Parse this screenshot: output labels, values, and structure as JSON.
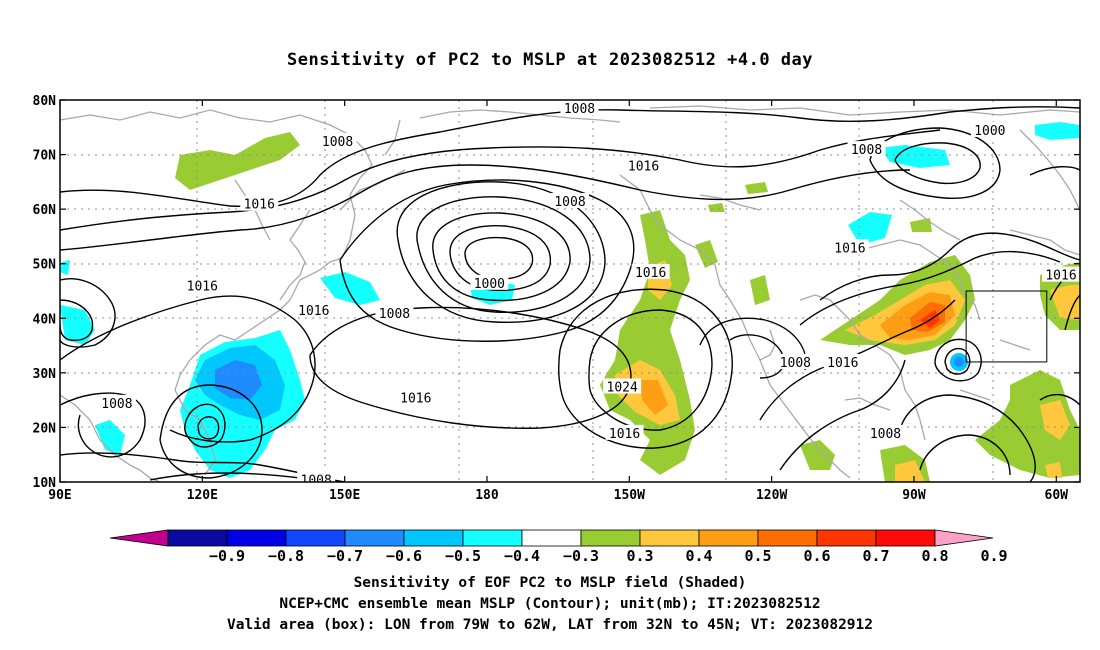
{
  "title": "Sensitivity of PC2 to MSLP at 2023082512 +4.0 day",
  "map": {
    "lon_range": [
      90,
      305
    ],
    "lat_range": [
      10,
      80
    ],
    "x_ticks": [
      {
        "lon": 90,
        "label": "90E"
      },
      {
        "lon": 120,
        "label": "120E"
      },
      {
        "lon": 150,
        "label": "150E"
      },
      {
        "lon": 180,
        "label": "180"
      },
      {
        "lon": 210,
        "label": "150W"
      },
      {
        "lon": 240,
        "label": "120W"
      },
      {
        "lon": 270,
        "label": "90W"
      },
      {
        "lon": 300,
        "label": "60W"
      }
    ],
    "y_ticks": [
      {
        "lat": 10,
        "label": "10N"
      },
      {
        "lat": 20,
        "label": "20N"
      },
      {
        "lat": 30,
        "label": "30N"
      },
      {
        "lat": 40,
        "label": "40N"
      },
      {
        "lat": 50,
        "label": "50N"
      },
      {
        "lat": 60,
        "label": "60N"
      },
      {
        "lat": 70,
        "label": "70N"
      },
      {
        "lat": 80,
        "label": "80N"
      }
    ],
    "grid": true,
    "valid_box": {
      "lon_min": 281,
      "lon_max": 298,
      "lat_min": 32,
      "lat_max": 45
    },
    "contour_labels": [
      {
        "text": "1008",
        "lon": 148.5,
        "lat": 72.5
      },
      {
        "text": "1008",
        "lon": 199.5,
        "lat": 78.5
      },
      {
        "text": "1008",
        "lon": 260,
        "lat": 71
      },
      {
        "text": "1000",
        "lon": 286,
        "lat": 74.5
      },
      {
        "text": "1016",
        "lon": 213,
        "lat": 68
      },
      {
        "text": "1008",
        "lon": 197.5,
        "lat": 61.5
      },
      {
        "text": "1016",
        "lon": 132,
        "lat": 61
      },
      {
        "text": "1016",
        "lon": 256.5,
        "lat": 53
      },
      {
        "text": "1016",
        "lon": 301,
        "lat": 48
      },
      {
        "text": "1016",
        "lon": 214.5,
        "lat": 48.5
      },
      {
        "text": "1000",
        "lon": 180.5,
        "lat": 46.5
      },
      {
        "text": "1016",
        "lon": 120,
        "lat": 46
      },
      {
        "text": "1016",
        "lon": 143.5,
        "lat": 41.5
      },
      {
        "text": "1008",
        "lon": 160.5,
        "lat": 41
      },
      {
        "text": "1008",
        "lon": 245,
        "lat": 32
      },
      {
        "text": "1016",
        "lon": 255,
        "lat": 32
      },
      {
        "text": "1024",
        "lon": 208.5,
        "lat": 27.5
      },
      {
        "text": "1016",
        "lon": 165,
        "lat": 25.5
      },
      {
        "text": "1008",
        "lon": 102,
        "lat": 24.5
      },
      {
        "text": "1016",
        "lon": 209,
        "lat": 19
      },
      {
        "text": "1008",
        "lon": 264,
        "lat": 19
      },
      {
        "text": "1008",
        "lon": 144,
        "lat": 10.5
      }
    ]
  },
  "colorbar": {
    "colors": [
      "#c2008f",
      "#0a0aa0",
      "#0000e6",
      "#1046ff",
      "#1e8cff",
      "#00c8ff",
      "#14ffff",
      "#ffffff",
      "#98cc32",
      "#ffc83c",
      "#ff9e14",
      "#ff6e00",
      "#ff3600",
      "#ff0a0a",
      "#ffa0c8"
    ],
    "labels": [
      "−0.9",
      "−0.8",
      "−0.7",
      "−0.6",
      "−0.5",
      "−0.4",
      "−0.3",
      "0.3",
      "0.4",
      "0.5",
      "0.6",
      "0.7",
      "0.8",
      "0.9"
    ]
  },
  "caption": {
    "line1": "Sensitivity of EOF PC2 to MSLP field (Shaded)",
    "line2": "NCEP+CMC ensemble mean MSLP (Contour); unit(mb); IT:2023082512",
    "line3": "Valid area (box): LON from 79W to 62W, LAT from 32N to 45N; VT: 2023082912"
  }
}
